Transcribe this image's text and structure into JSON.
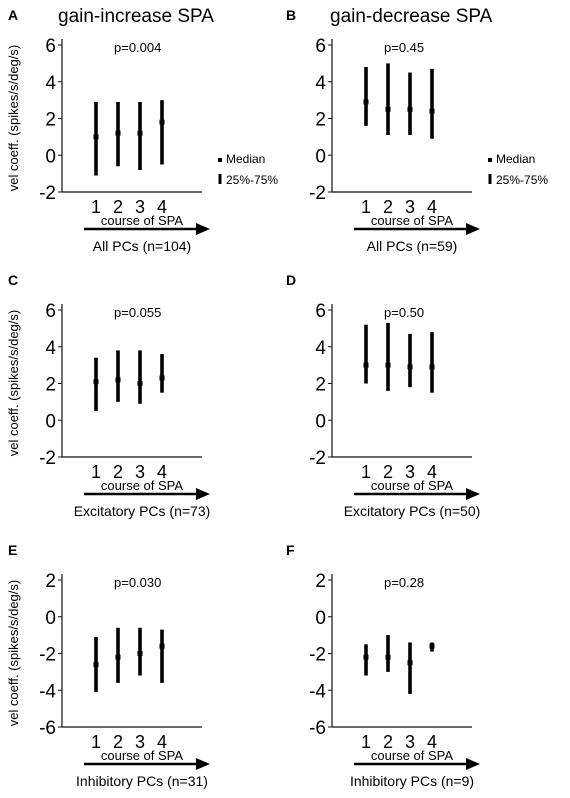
{
  "columns": [
    "gain-increase SPA",
    "gain-decrease SPA"
  ],
  "legend": {
    "median": "Median",
    "range": "25%-75%"
  },
  "chart_data": [
    {
      "type": "range",
      "panel": "A",
      "column": 0,
      "pvalue": "p=0.004",
      "ylabel": "vel coeff. (spikes/s/deg/s)",
      "xlabel": "course of SPA",
      "group_label": "All PCs (n=104)",
      "categories": [
        "1",
        "2",
        "3",
        "4"
      ],
      "ylim": [
        -2,
        6
      ],
      "yticks": [
        -2,
        0,
        2,
        4,
        6
      ],
      "median": [
        1.0,
        1.2,
        1.2,
        1.8
      ],
      "q25": [
        -1.1,
        -0.6,
        -0.8,
        -0.5
      ],
      "q75": [
        2.9,
        2.9,
        2.9,
        3.0
      ],
      "legend": true
    },
    {
      "type": "range",
      "panel": "B",
      "column": 1,
      "pvalue": "p=0.45",
      "ylabel": "",
      "xlabel": "course of SPA",
      "group_label": "All PCs (n=59)",
      "categories": [
        "1",
        "2",
        "3",
        "4"
      ],
      "ylim": [
        -2,
        6
      ],
      "yticks": [
        -2,
        0,
        2,
        4,
        6
      ],
      "median": [
        2.9,
        2.5,
        2.5,
        2.4
      ],
      "q25": [
        1.6,
        1.1,
        1.1,
        0.9
      ],
      "q75": [
        4.8,
        5.0,
        4.5,
        4.7
      ],
      "legend": true
    },
    {
      "type": "range",
      "panel": "C",
      "column": 0,
      "pvalue": "p=0.055",
      "ylabel": "vel coeff. (spikes/s/deg/s)",
      "xlabel": "course of SPA",
      "group_label": "Excitatory PCs (n=73)",
      "categories": [
        "1",
        "2",
        "3",
        "4"
      ],
      "ylim": [
        -2,
        6
      ],
      "yticks": [
        -2,
        0,
        2,
        4,
        6
      ],
      "median": [
        2.1,
        2.2,
        2.0,
        2.3
      ],
      "q25": [
        0.5,
        1.0,
        0.9,
        1.5
      ],
      "q75": [
        3.4,
        3.8,
        3.8,
        3.6
      ],
      "legend": false
    },
    {
      "type": "range",
      "panel": "D",
      "column": 1,
      "pvalue": "p=0.50",
      "ylabel": "",
      "xlabel": "course of SPA",
      "group_label": "Excitatory PCs (n=50)",
      "categories": [
        "1",
        "2",
        "3",
        "4"
      ],
      "ylim": [
        -2,
        6
      ],
      "yticks": [
        -2,
        0,
        2,
        4,
        6
      ],
      "median": [
        3.0,
        3.0,
        2.9,
        2.9
      ],
      "q25": [
        2.0,
        1.6,
        1.8,
        1.5
      ],
      "q75": [
        5.2,
        5.3,
        4.7,
        4.8
      ],
      "legend": false
    },
    {
      "type": "range",
      "panel": "E",
      "column": 0,
      "pvalue": "p=0.030",
      "ylabel": "vel coeff. (spikes/s/deg/s)",
      "xlabel": "course of SPA",
      "group_label": "Inhibitory PCs (n=31)",
      "categories": [
        "1",
        "2",
        "3",
        "4"
      ],
      "ylim": [
        -6,
        2
      ],
      "yticks": [
        -6,
        -4,
        -2,
        0,
        2
      ],
      "median": [
        -2.6,
        -2.2,
        -2.0,
        -1.6
      ],
      "q25": [
        -4.1,
        -3.6,
        -3.2,
        -3.6
      ],
      "q75": [
        -1.1,
        -0.6,
        -0.6,
        -0.7
      ],
      "legend": false
    },
    {
      "type": "range",
      "panel": "F",
      "column": 1,
      "pvalue": "p=0.28",
      "ylabel": "",
      "xlabel": "course of SPA",
      "group_label": "Inhibitory PCs (n=9)",
      "categories": [
        "1",
        "2",
        "3",
        "4"
      ],
      "ylim": [
        -6,
        2
      ],
      "yticks": [
        -6,
        -4,
        -2,
        0,
        2
      ],
      "median": [
        -2.2,
        -2.2,
        -2.5,
        -1.6
      ],
      "q25": [
        -3.2,
        -3.0,
        -4.2,
        -1.9
      ],
      "q75": [
        -1.5,
        -1.0,
        -1.4,
        -1.4
      ],
      "legend": false
    }
  ]
}
